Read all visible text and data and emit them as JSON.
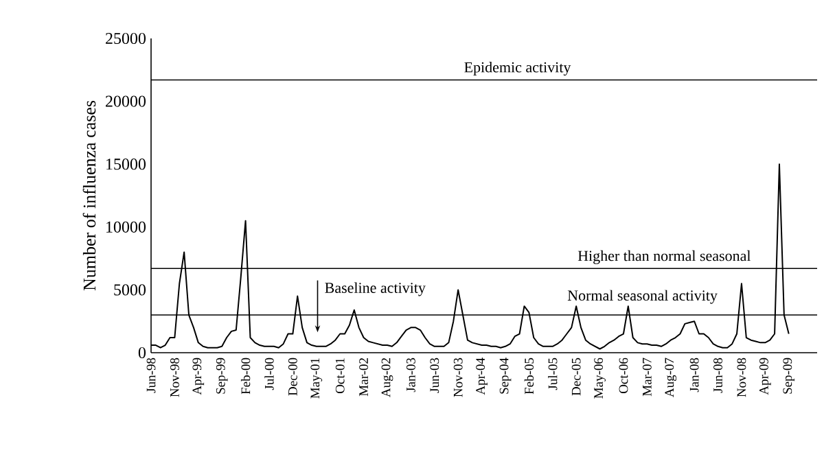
{
  "chart_data": {
    "type": "line",
    "ylabel": "Number of influenza cases",
    "categories": [
      "Jun-98",
      null,
      null,
      null,
      null,
      "Nov-98",
      null,
      null,
      null,
      null,
      "Apr-99",
      null,
      null,
      null,
      null,
      "Sep-99",
      null,
      null,
      null,
      null,
      "Feb-00",
      null,
      null,
      null,
      null,
      "Jul-00",
      null,
      null,
      null,
      null,
      "Dec-00",
      null,
      null,
      null,
      null,
      "May-01",
      null,
      null,
      null,
      null,
      "Oct-01",
      null,
      null,
      null,
      null,
      "Mar-02",
      null,
      null,
      null,
      null,
      "Aug-02",
      null,
      null,
      null,
      null,
      "Jan-03",
      null,
      null,
      null,
      null,
      "Jun-03",
      null,
      null,
      null,
      null,
      "Nov-03",
      null,
      null,
      null,
      null,
      "Apr-04",
      null,
      null,
      null,
      null,
      "Sep-04",
      null,
      null,
      null,
      null,
      "Feb-05",
      null,
      null,
      null,
      null,
      "Jul-05",
      null,
      null,
      null,
      null,
      "Dec-05",
      null,
      null,
      null,
      null,
      "May-06",
      null,
      null,
      null,
      null,
      "Oct-06",
      null,
      null,
      null,
      null,
      "Mar-07",
      null,
      null,
      null,
      null,
      "Aug-07",
      null,
      null,
      null,
      null,
      "Jan-08",
      null,
      null,
      null,
      null,
      "Jun-08",
      null,
      null,
      null,
      null,
      "Nov-08",
      null,
      null,
      null,
      null,
      "Apr-09",
      null,
      null,
      null,
      null,
      "Sep-09"
    ],
    "values": [
      600,
      600,
      400,
      600,
      1200,
      1200,
      5500,
      8000,
      3000,
      2000,
      800,
      500,
      400,
      400,
      400,
      500,
      1200,
      1700,
      1800,
      6000,
      10500,
      1200,
      800,
      600,
      500,
      500,
      500,
      400,
      700,
      1500,
      1500,
      4500,
      2000,
      800,
      600,
      500,
      500,
      500,
      700,
      1000,
      1500,
      1500,
      2200,
      3400,
      2000,
      1200,
      900,
      800,
      700,
      600,
      600,
      500,
      800,
      1300,
      1800,
      2000,
      2000,
      1800,
      1200,
      700,
      500,
      500,
      500,
      800,
      2500,
      5000,
      3000,
      1000,
      800,
      700,
      600,
      600,
      500,
      500,
      400,
      500,
      700,
      1300,
      1500,
      3700,
      3200,
      1200,
      700,
      500,
      500,
      500,
      700,
      1000,
      1500,
      2000,
      3700,
      2000,
      1000,
      700,
      500,
      300,
      500,
      800,
      1000,
      1300,
      1500,
      3700,
      1200,
      800,
      700,
      700,
      600,
      600,
      500,
      700,
      1000,
      1200,
      1500,
      2300,
      2400,
      2500,
      1500,
      1500,
      1200,
      700,
      500,
      400,
      400,
      700,
      1500,
      5500,
      1200,
      1000,
      900,
      800,
      800,
      1000,
      1500,
      15000,
      3000,
      1500
    ],
    "color": "#000000",
    "ylim": [
      0,
      25000
    ],
    "yticks": [
      0,
      5000,
      10000,
      15000,
      20000,
      25000
    ],
    "ref_lines": [
      {
        "axis": "y",
        "value": 21700,
        "label": "Epidemic activity",
        "color": "#000000"
      },
      {
        "axis": "y",
        "value": 6700,
        "label": "Higher than normal seasonal",
        "color": "#000000"
      },
      {
        "axis": "y",
        "value": 3000,
        "label": "Normal seasonal activity",
        "color": "#000000"
      }
    ],
    "annotations": [
      "Baseline activity"
    ],
    "grid": false,
    "marker": "none",
    "line_style": "solid"
  }
}
